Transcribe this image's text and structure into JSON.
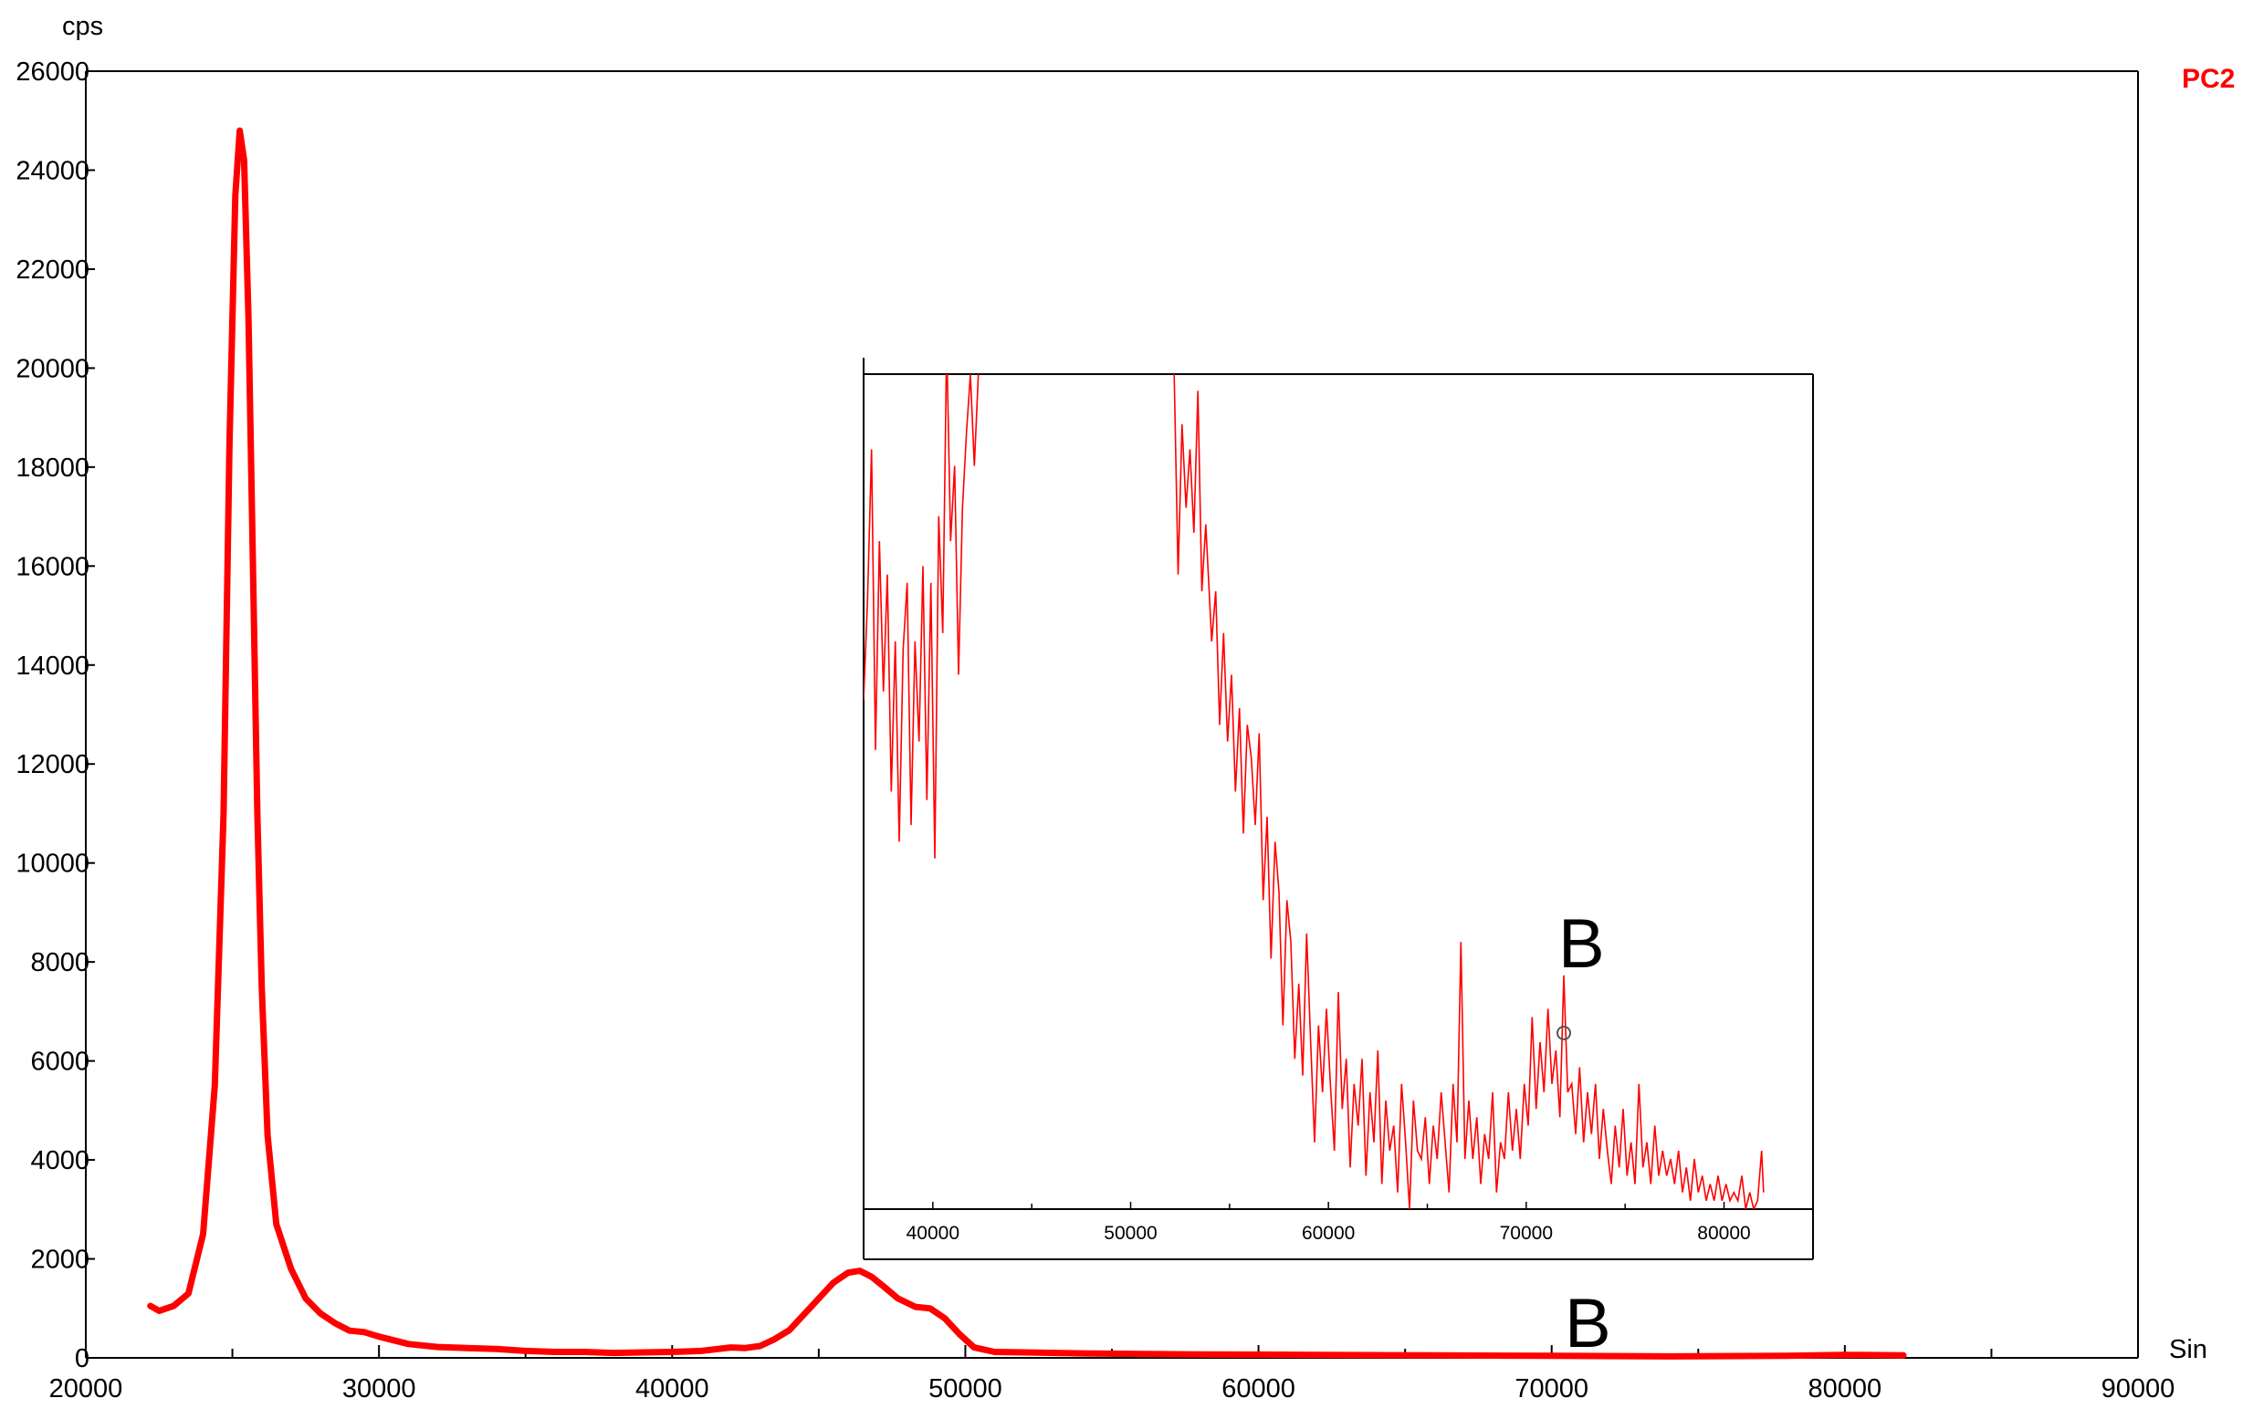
{
  "chart_data": {
    "type": "line",
    "title": "",
    "ylabel": "cps",
    "xlabel": "Sin",
    "legend": "top-right",
    "xlim": [
      20000,
      90000
    ],
    "ylim": [
      0,
      26000
    ],
    "xticks": [
      20000,
      30000,
      40000,
      50000,
      60000,
      70000,
      80000,
      90000
    ],
    "yticks": [
      0,
      2000,
      4000,
      6000,
      8000,
      10000,
      12000,
      14000,
      16000,
      18000,
      20000,
      22000,
      24000,
      26000
    ],
    "series": [
      {
        "name": "PC2",
        "color": "#ff0000",
        "points": [
          [
            22200,
            1050
          ],
          [
            22500,
            950
          ],
          [
            23000,
            1050
          ],
          [
            23500,
            1300
          ],
          [
            24000,
            2500
          ],
          [
            24400,
            5500
          ],
          [
            24700,
            11000
          ],
          [
            24900,
            18500
          ],
          [
            25100,
            23500
          ],
          [
            25250,
            24800
          ],
          [
            25400,
            24200
          ],
          [
            25550,
            21000
          ],
          [
            25700,
            16000
          ],
          [
            25850,
            11000
          ],
          [
            26000,
            7500
          ],
          [
            26200,
            4500
          ],
          [
            26500,
            2700
          ],
          [
            27000,
            1800
          ],
          [
            27500,
            1200
          ],
          [
            28000,
            900
          ],
          [
            28500,
            700
          ],
          [
            29000,
            550
          ],
          [
            29500,
            520
          ],
          [
            30000,
            430
          ],
          [
            31000,
            280
          ],
          [
            32000,
            220
          ],
          [
            33000,
            200
          ],
          [
            34000,
            180
          ],
          [
            35000,
            140
          ],
          [
            36000,
            120
          ],
          [
            37000,
            120
          ],
          [
            38000,
            100
          ],
          [
            39000,
            110
          ],
          [
            40000,
            120
          ],
          [
            41000,
            140
          ],
          [
            42000,
            210
          ],
          [
            42500,
            200
          ],
          [
            43000,
            240
          ],
          [
            43500,
            380
          ],
          [
            44000,
            560
          ],
          [
            44500,
            880
          ],
          [
            45000,
            1200
          ],
          [
            45500,
            1520
          ],
          [
            46000,
            1720
          ],
          [
            46400,
            1760
          ],
          [
            46800,
            1640
          ],
          [
            47200,
            1450
          ],
          [
            47700,
            1200
          ],
          [
            48300,
            1030
          ],
          [
            48800,
            1000
          ],
          [
            49300,
            800
          ],
          [
            49800,
            480
          ],
          [
            50300,
            210
          ],
          [
            51000,
            120
          ],
          [
            52000,
            110
          ],
          [
            54000,
            90
          ],
          [
            56000,
            80
          ],
          [
            58000,
            70
          ],
          [
            62000,
            60
          ],
          [
            66000,
            50
          ],
          [
            70000,
            40
          ],
          [
            74000,
            30
          ],
          [
            78000,
            40
          ],
          [
            80000,
            60
          ],
          [
            82000,
            50
          ]
        ]
      }
    ],
    "inset": {
      "type": "line",
      "xticks": [
        40000,
        50000,
        60000,
        70000,
        80000
      ],
      "xlim": [
        36500,
        84500
      ],
      "color": "#ff0000",
      "points": [
        [
          36500,
          930
        ],
        [
          36700,
          1050
        ],
        [
          36900,
          1230
        ],
        [
          37100,
          870
        ],
        [
          37300,
          1120
        ],
        [
          37500,
          940
        ],
        [
          37700,
          1080
        ],
        [
          37900,
          820
        ],
        [
          38100,
          1000
        ],
        [
          38300,
          760
        ],
        [
          38500,
          990
        ],
        [
          38700,
          1070
        ],
        [
          38900,
          780
        ],
        [
          39100,
          1000
        ],
        [
          39300,
          880
        ],
        [
          39500,
          1090
        ],
        [
          39700,
          810
        ],
        [
          39900,
          1070
        ],
        [
          40100,
          740
        ],
        [
          40300,
          1150
        ],
        [
          40500,
          1010
        ],
        [
          40700,
          1360
        ],
        [
          40900,
          1120
        ],
        [
          41100,
          1210
        ],
        [
          41300,
          960
        ],
        [
          41500,
          1160
        ],
        [
          41700,
          1250
        ],
        [
          41900,
          1320
        ],
        [
          42100,
          1210
        ],
        [
          42300,
          1320
        ],
        [
          52200,
          1320
        ],
        [
          52400,
          1080
        ],
        [
          52600,
          1260
        ],
        [
          52800,
          1160
        ],
        [
          53000,
          1230
        ],
        [
          53200,
          1130
        ],
        [
          53400,
          1300
        ],
        [
          53600,
          1060
        ],
        [
          53800,
          1140
        ],
        [
          54100,
          1000
        ],
        [
          54300,
          1060
        ],
        [
          54500,
          900
        ],
        [
          54700,
          1010
        ],
        [
          54900,
          880
        ],
        [
          55100,
          960
        ],
        [
          55300,
          820
        ],
        [
          55500,
          920
        ],
        [
          55700,
          770
        ],
        [
          55900,
          900
        ],
        [
          56100,
          860
        ],
        [
          56300,
          780
        ],
        [
          56500,
          890
        ],
        [
          56700,
          690
        ],
        [
          56900,
          790
        ],
        [
          57100,
          620
        ],
        [
          57300,
          760
        ],
        [
          57500,
          700
        ],
        [
          57700,
          540
        ],
        [
          57900,
          690
        ],
        [
          58100,
          640
        ],
        [
          58300,
          500
        ],
        [
          58500,
          590
        ],
        [
          58700,
          480
        ],
        [
          58900,
          650
        ],
        [
          59100,
          520
        ],
        [
          59300,
          400
        ],
        [
          59500,
          540
        ],
        [
          59700,
          460
        ],
        [
          59900,
          560
        ],
        [
          60100,
          470
        ],
        [
          60300,
          390
        ],
        [
          60500,
          580
        ],
        [
          60700,
          440
        ],
        [
          60900,
          500
        ],
        [
          61100,
          370
        ],
        [
          61300,
          470
        ],
        [
          61500,
          420
        ],
        [
          61700,
          500
        ],
        [
          61900,
          360
        ],
        [
          62100,
          460
        ],
        [
          62300,
          400
        ],
        [
          62500,
          510
        ],
        [
          62700,
          350
        ],
        [
          62900,
          450
        ],
        [
          63100,
          390
        ],
        [
          63300,
          420
        ],
        [
          63500,
          340
        ],
        [
          63700,
          470
        ],
        [
          63900,
          400
        ],
        [
          64100,
          320
        ],
        [
          64300,
          450
        ],
        [
          64500,
          390
        ],
        [
          64700,
          380
        ],
        [
          64900,
          430
        ],
        [
          65100,
          350
        ],
        [
          65300,
          420
        ],
        [
          65500,
          380
        ],
        [
          65700,
          460
        ],
        [
          65900,
          400
        ],
        [
          66100,
          340
        ],
        [
          66300,
          470
        ],
        [
          66500,
          400
        ],
        [
          66700,
          640
        ],
        [
          66900,
          380
        ],
        [
          67100,
          450
        ],
        [
          67300,
          380
        ],
        [
          67500,
          430
        ],
        [
          67700,
          350
        ],
        [
          67900,
          410
        ],
        [
          68100,
          380
        ],
        [
          68300,
          460
        ],
        [
          68500,
          340
        ],
        [
          68700,
          400
        ],
        [
          68900,
          380
        ],
        [
          69100,
          460
        ],
        [
          69300,
          390
        ],
        [
          69500,
          440
        ],
        [
          69700,
          380
        ],
        [
          69900,
          470
        ],
        [
          70100,
          420
        ],
        [
          70300,
          550
        ],
        [
          70500,
          440
        ],
        [
          70700,
          520
        ],
        [
          70900,
          460
        ],
        [
          71100,
          560
        ],
        [
          71300,
          470
        ],
        [
          71500,
          510
        ],
        [
          71700,
          430
        ],
        [
          71900,
          600
        ],
        [
          72100,
          460
        ],
        [
          72300,
          470
        ],
        [
          72500,
          410
        ],
        [
          72700,
          490
        ],
        [
          72900,
          400
        ],
        [
          73100,
          460
        ],
        [
          73300,
          410
        ],
        [
          73500,
          470
        ],
        [
          73700,
          380
        ],
        [
          73900,
          440
        ],
        [
          74100,
          390
        ],
        [
          74300,
          350
        ],
        [
          74500,
          420
        ],
        [
          74700,
          370
        ],
        [
          74900,
          440
        ],
        [
          75100,
          360
        ],
        [
          75300,
          400
        ],
        [
          75500,
          350
        ],
        [
          75700,
          470
        ],
        [
          75900,
          370
        ],
        [
          76100,
          400
        ],
        [
          76300,
          350
        ],
        [
          76500,
          420
        ],
        [
          76700,
          360
        ],
        [
          76900,
          390
        ],
        [
          77100,
          360
        ],
        [
          77300,
          380
        ],
        [
          77500,
          350
        ],
        [
          77700,
          390
        ],
        [
          77900,
          340
        ],
        [
          78100,
          370
        ],
        [
          78300,
          330
        ],
        [
          78500,
          380
        ],
        [
          78700,
          340
        ],
        [
          78900,
          360
        ],
        [
          79100,
          330
        ],
        [
          79300,
          350
        ],
        [
          79500,
          330
        ],
        [
          79700,
          360
        ],
        [
          79900,
          330
        ],
        [
          80100,
          350
        ],
        [
          80300,
          330
        ],
        [
          80500,
          340
        ],
        [
          80700,
          330
        ],
        [
          80900,
          360
        ],
        [
          81100,
          320
        ],
        [
          81300,
          340
        ],
        [
          81500,
          320
        ],
        [
          81700,
          330
        ],
        [
          81900,
          390
        ],
        [
          82000,
          340
        ]
      ]
    },
    "annotations": [
      "B",
      "B"
    ]
  }
}
